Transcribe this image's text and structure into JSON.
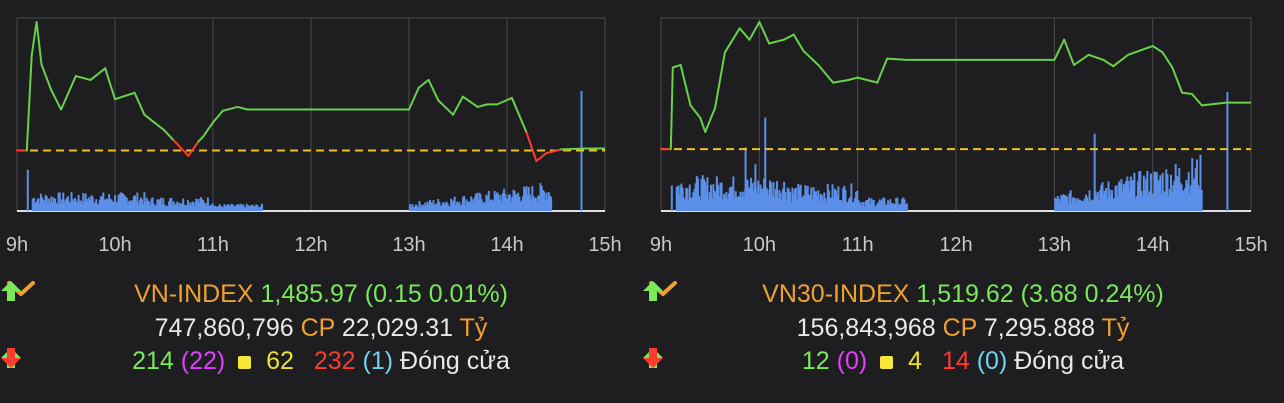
{
  "colors": {
    "price_line": "#67d14a",
    "below_ref_line": "#ff3b2f",
    "reference_line": "#f0c020",
    "volume_bar": "#5b8fe8",
    "grid": "#4a4a4e",
    "axis": "#e0e0e0"
  },
  "chart_data": [
    {
      "type": "line",
      "panel": "left",
      "x_ticks": [
        "9h",
        "10h",
        "11h",
        "12h",
        "13h",
        "14h",
        "15h"
      ],
      "xlim": [
        9,
        15
      ],
      "reference_value": 1485.82,
      "price_series": {
        "x": [
          9.0,
          9.1,
          9.15,
          9.2,
          9.25,
          9.35,
          9.45,
          9.6,
          9.75,
          9.9,
          10.0,
          10.2,
          10.3,
          10.5,
          10.6,
          10.75,
          10.85,
          10.9,
          11.0,
          11.1,
          11.25,
          11.35,
          11.5,
          13.0,
          13.1,
          13.2,
          13.3,
          13.45,
          13.55,
          13.7,
          13.8,
          13.9,
          14.05,
          14.2,
          14.3,
          14.4,
          14.45,
          14.55,
          14.8
        ],
        "y": [
          1485.82,
          1485.82,
          1493.2,
          1495.8,
          1492.5,
          1490.5,
          1489.0,
          1491.6,
          1491.3,
          1492.2,
          1489.8,
          1490.3,
          1488.6,
          1487.4,
          1486.6,
          1485.4,
          1486.5,
          1486.9,
          1488.0,
          1488.9,
          1489.2,
          1489.0,
          1489.0,
          1489.0,
          1490.7,
          1491.3,
          1489.7,
          1488.6,
          1490.0,
          1489.2,
          1489.4,
          1489.4,
          1489.9,
          1487.2,
          1485.0,
          1485.6,
          1485.7,
          1485.9,
          1485.97
        ]
      },
      "volume_series": {
        "morning_start": 9.15,
        "morning_end": 11.5,
        "afternoon_start": 13.0,
        "afternoon_end": 14.45,
        "ato_spike_x": 9.1,
        "atc_spike_x": 14.75,
        "base_level": 0.15,
        "ato_level": 0.55,
        "atc_level": 1.6
      }
    },
    {
      "type": "line",
      "panel": "right",
      "x_ticks": [
        "9h",
        "10h",
        "11h",
        "12h",
        "13h",
        "14h",
        "15h"
      ],
      "xlim": [
        9,
        15
      ],
      "reference_value": 1515.94,
      "price_series": {
        "x": [
          9.0,
          9.1,
          9.12,
          9.2,
          9.3,
          9.4,
          9.45,
          9.55,
          9.65,
          9.8,
          9.9,
          10.0,
          10.1,
          10.25,
          10.35,
          10.45,
          10.6,
          10.75,
          10.9,
          11.0,
          11.2,
          11.3,
          11.5,
          13.0,
          13.1,
          13.2,
          13.35,
          13.5,
          13.6,
          13.75,
          14.0,
          14.1,
          14.2,
          14.3,
          14.4,
          14.5,
          14.75
        ],
        "y": [
          1515.94,
          1515.94,
          1522.4,
          1522.6,
          1519.4,
          1518.4,
          1517.3,
          1519.2,
          1523.6,
          1525.5,
          1524.6,
          1526.0,
          1524.3,
          1524.6,
          1525.0,
          1523.7,
          1522.6,
          1521.2,
          1521.4,
          1521.6,
          1521.2,
          1523.1,
          1523.0,
          1523.0,
          1524.6,
          1522.6,
          1523.4,
          1523.0,
          1522.5,
          1523.4,
          1524.1,
          1523.6,
          1522.4,
          1520.4,
          1520.3,
          1519.4,
          1519.62
        ]
      },
      "volume_series": {
        "morning_start": 9.15,
        "morning_end": 11.5,
        "afternoon_start": 13.0,
        "afternoon_end": 14.5,
        "ato_spike_x": 9.1,
        "atc_spike_x": 14.75,
        "mid_spike_x": 13.4,
        "base_level": 0.25,
        "ato_level": 0.3,
        "atc_level": 1.4
      }
    }
  ],
  "panels": [
    {
      "name": "VN-INDEX",
      "value": "1,485.97",
      "change": "(0.15 0.01%)",
      "volume": "747,860,796",
      "cp_label": "CP",
      "turnover": "22,029.31",
      "currency": "Tỷ",
      "advancers": "214",
      "ceiling": "(22)",
      "unchanged": "62",
      "decliners": "232",
      "floor": "(1)",
      "status": "Đóng cửa"
    },
    {
      "name": "VN30-INDEX",
      "value": "1,519.62",
      "change": "(3.68 0.24%)",
      "volume": "156,843,968",
      "cp_label": "CP",
      "turnover": "7,295.888",
      "currency": "Tỷ",
      "advancers": "12",
      "ceiling": "(0)",
      "unchanged": "4",
      "decliners": "14",
      "floor": "(0)",
      "status": "Đóng cửa"
    }
  ]
}
